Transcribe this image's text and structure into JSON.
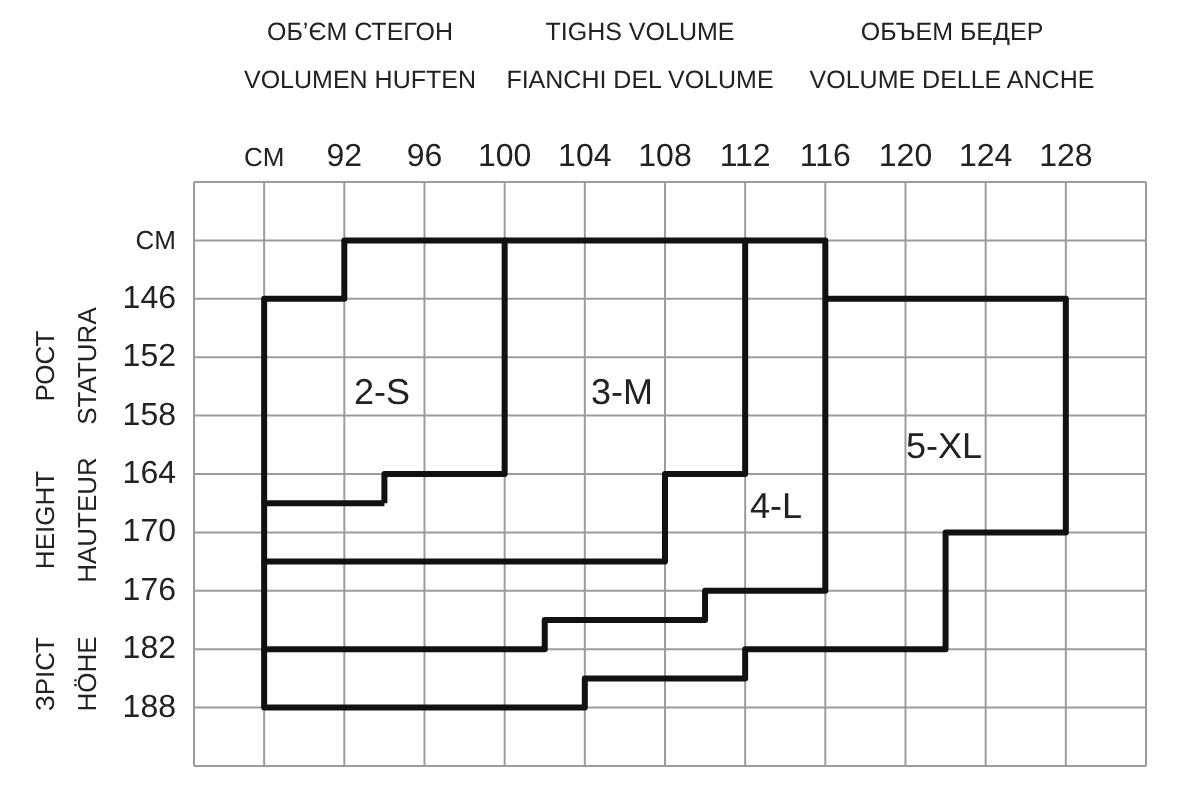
{
  "chart_data": {
    "type": "line",
    "xlabel": "ОБ’ЄМ СТЕГОН\nVOLUMEN HUFTEN\n\nTIGHS VOLUME\nFIANCHI DEL VOLUME\n\nОБЪЕМ БЕДЕР\nVOLUME DELLE ANCHE",
    "ylabel": "РОСТ\nSTATURA\n\nHEIGHT\nHAUTEUR\n\nЗРІСТ\nHÖHE",
    "xlim": [
      84.5,
      132
    ],
    "xticks": [
      {
        "value": 88,
        "label": "CM"
      },
      92,
      96,
      100,
      104,
      108,
      112,
      116,
      120,
      124,
      128
    ],
    "ylim": [
      194,
      134
    ],
    "yticks": [
      {
        "value": 140,
        "label": "CM"
      },
      146,
      152,
      158,
      164,
      170,
      176,
      182,
      188
    ],
    "grid": true,
    "marker": "none",
    "line_style": "solid",
    "series": [
      {
        "color": "#111111",
        "x": [
          88,
          88,
          92,
          92,
          100,
          100,
          94,
          94
        ],
        "values": [
          167,
          146,
          146,
          140,
          140,
          164,
          164,
          167
        ]
      },
      {
        "color": "#111111",
        "x": [
          100,
          112,
          112,
          108,
          108,
          88,
          88,
          94
        ],
        "values": [
          140,
          140,
          164,
          164,
          173,
          173,
          167,
          167
        ]
      },
      {
        "color": "#111111",
        "x": [
          112,
          116,
          116,
          110,
          110,
          102,
          102,
          88,
          88
        ],
        "values": [
          140,
          140,
          176,
          176,
          179,
          179,
          182,
          182,
          173
        ]
      },
      {
        "color": "#111111",
        "x": [
          116,
          128,
          128,
          122,
          122,
          112,
          112,
          104,
          104,
          88,
          88
        ],
        "values": [
          146,
          146,
          170,
          170,
          182,
          182,
          185,
          185,
          188,
          188,
          182
        ]
      }
    ],
    "annotations": [
      "2-S",
      "3-M",
      "4-L",
      "5-XL"
    ]
  }
}
